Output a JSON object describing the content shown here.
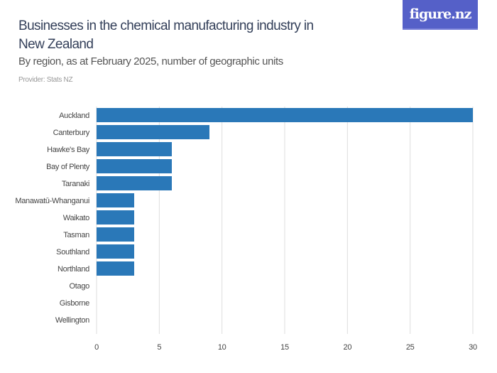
{
  "header": {
    "title": "Businesses in the chemical manufacturing industry in New Zealand",
    "subtitle": "By region, as at February 2025, number of geographic units",
    "provider": "Provider: Stats NZ",
    "logo_text": "figure.nz"
  },
  "colors": {
    "bar": "#2a78b8",
    "logo_bg": "#5560c8",
    "grid": "#dddddd"
  },
  "chart_data": {
    "type": "bar",
    "orientation": "horizontal",
    "categories": [
      "Auckland",
      "Canterbury",
      "Hawke's Bay",
      "Bay of Plenty",
      "Taranaki",
      "Manawatū-Whanganui",
      "Waikato",
      "Tasman",
      "Southland",
      "Northland",
      "Otago",
      "Gisborne",
      "Wellington"
    ],
    "values": [
      30,
      9,
      6,
      6,
      6,
      3,
      3,
      3,
      3,
      3,
      0,
      0,
      0
    ],
    "xlim": [
      0,
      30
    ],
    "xticks": [
      0,
      5,
      10,
      15,
      20,
      25,
      30
    ],
    "grid": true,
    "title": "Businesses in the chemical manufacturing industry in New Zealand",
    "xlabel": "",
    "ylabel": ""
  }
}
